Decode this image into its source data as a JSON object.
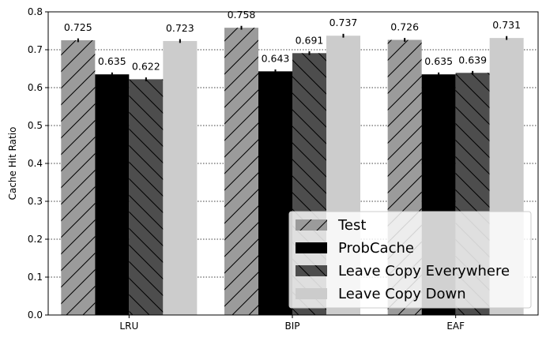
{
  "chart_data": {
    "type": "bar",
    "title": "",
    "xlabel": "",
    "ylabel": "Cache Hit Ratio",
    "categories": [
      "LRU",
      "BIP",
      "EAF"
    ],
    "series": [
      {
        "name": "Test",
        "values": [
          0.725,
          0.758,
          0.726
        ],
        "value_labels": [
          "0.725",
          "0.758",
          "0.726"
        ],
        "errors": [
          0.005,
          0.005,
          0.005
        ],
        "color": "#9b9b9b",
        "hatch": "forward-diagonal"
      },
      {
        "name": "ProbCache",
        "values": [
          0.635,
          0.643,
          0.635
        ],
        "value_labels": [
          "0.635",
          "0.643",
          "0.635"
        ],
        "errors": [
          0.005,
          0.005,
          0.005
        ],
        "color": "#000000",
        "hatch": "none"
      },
      {
        "name": "Leave Copy Everywhere",
        "values": [
          0.622,
          0.691,
          0.639
        ],
        "value_labels": [
          "0.622",
          "0.691",
          "0.639"
        ],
        "errors": [
          0.005,
          0.005,
          0.005
        ],
        "color": "#4d4d4d",
        "hatch": "back-diagonal"
      },
      {
        "name": "Leave Copy Down",
        "values": [
          0.723,
          0.737,
          0.731
        ],
        "value_labels": [
          "0.723",
          "0.737",
          "0.731"
        ],
        "errors": [
          0.005,
          0.005,
          0.005
        ],
        "color": "#cccccc",
        "hatch": "none"
      }
    ],
    "ylim": [
      0,
      0.8
    ],
    "yticks": [
      "0.0",
      "0.1",
      "0.2",
      "0.3",
      "0.4",
      "0.5",
      "0.6",
      "0.7",
      "0.8"
    ],
    "grid": "horizontal-dotted",
    "legend_position": "bottom-right"
  }
}
